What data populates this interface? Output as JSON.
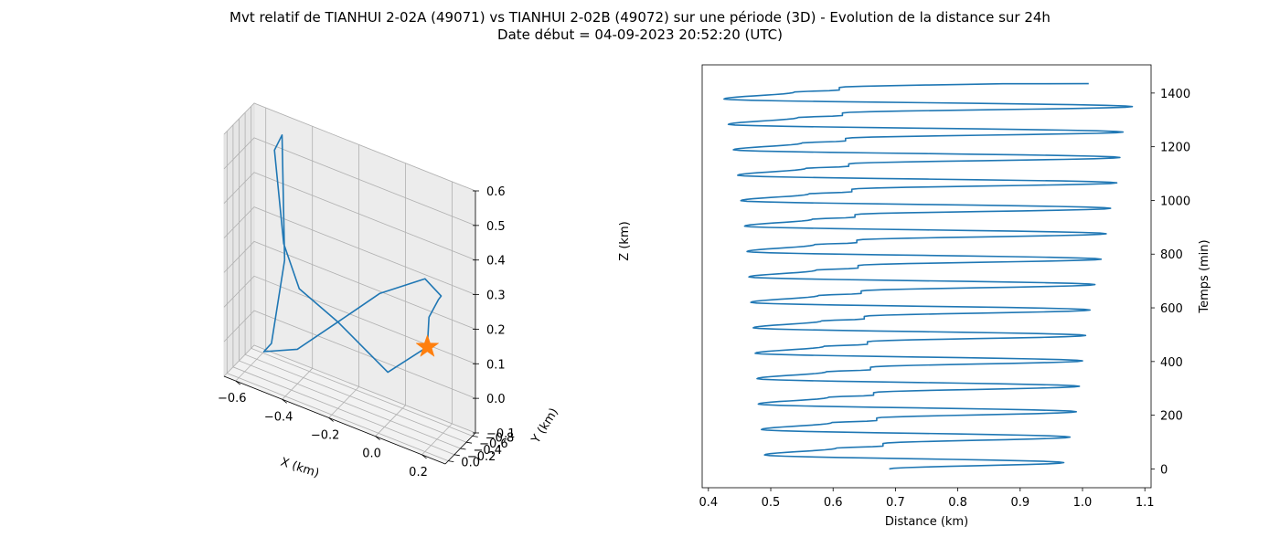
{
  "figure": {
    "title_line1": "Mvt relatif de TIANHUI 2-02A (49071) vs TIANHUI 2-02B (49072) sur une période (3D) - Evolution de la distance sur 24h",
    "title_line2": "Date début = 04-09-2023 20:52:20 (UTC)"
  },
  "chart_data": [
    {
      "type": "line",
      "projection": "3d",
      "xlabel": "X (km)",
      "ylabel": "Y (km)",
      "zlabel": "Z (km)",
      "xlim": [
        -0.65,
        0.3
      ],
      "ylim": [
        -0.9,
        0.1
      ],
      "zlim": [
        -0.1,
        0.6
      ],
      "x_ticks": [
        -0.6,
        -0.4,
        -0.2,
        0.0,
        0.2
      ],
      "x_tick_labels": [
        "−0.6",
        "−0.4",
        "−0.2",
        "0.0",
        "0.2"
      ],
      "y_ticks": [
        0.0,
        -0.2,
        -0.4,
        -0.6,
        -0.8
      ],
      "y_tick_labels": [
        "0.0",
        "−0.2",
        "−0.4",
        "−0.6",
        "−0.8"
      ],
      "z_ticks": [
        -0.1,
        0.0,
        0.1,
        0.2,
        0.3,
        0.4,
        0.5,
        0.6
      ],
      "z_tick_labels": [
        "−0.1",
        "0.0",
        "0.1",
        "0.2",
        "0.3",
        "0.4",
        "0.5",
        "0.6"
      ],
      "grid": true,
      "line_color": "#1f77b4",
      "marker_color": "#ff7f0e",
      "marker_shape": "star",
      "path": [
        {
          "x": 0.1,
          "y": -0.85,
          "z": 0.1
        },
        {
          "x": -0.05,
          "y": -0.7,
          "z": 0.0
        },
        {
          "x": -0.25,
          "y": -0.6,
          "z": 0.1
        },
        {
          "x": -0.42,
          "y": -0.62,
          "z": 0.15
        },
        {
          "x": -0.5,
          "y": -0.72,
          "z": 0.25
        },
        {
          "x": -0.55,
          "y": -0.8,
          "z": 0.5
        },
        {
          "x": -0.52,
          "y": -0.82,
          "z": 0.55
        },
        {
          "x": -0.5,
          "y": -0.75,
          "z": 0.2
        },
        {
          "x": -0.55,
          "y": -0.7,
          "z": -0.05
        },
        {
          "x": -0.58,
          "y": -0.68,
          "z": -0.08
        },
        {
          "x": -0.4,
          "y": -0.4,
          "z": 0.0
        },
        {
          "x": -0.2,
          "y": -0.2,
          "z": 0.15
        },
        {
          "x": 0.0,
          "y": -0.05,
          "z": 0.3
        },
        {
          "x": 0.2,
          "y": 0.0,
          "z": 0.4
        },
        {
          "x": 0.25,
          "y": -0.15,
          "z": 0.35
        },
        {
          "x": 0.2,
          "y": -0.45,
          "z": 0.3
        },
        {
          "x": 0.12,
          "y": -0.75,
          "z": 0.2
        },
        {
          "x": 0.1,
          "y": -0.85,
          "z": 0.1
        }
      ],
      "marker_position": {
        "x": 0.1,
        "y": -0.85,
        "z": 0.1
      }
    },
    {
      "type": "line",
      "xlabel": "Distance (km)",
      "ylabel": "Temps (min)",
      "y_axis_side": "right",
      "xlim": [
        0.39,
        1.11
      ],
      "ylim": [
        -70,
        1505
      ],
      "x_ticks": [
        0.4,
        0.5,
        0.6,
        0.7,
        0.8,
        0.9,
        1.0,
        1.1
      ],
      "x_tick_labels": [
        "0.4",
        "0.5",
        "0.6",
        "0.7",
        "0.8",
        "0.9",
        "1.0",
        "1.1"
      ],
      "y_ticks": [
        0,
        200,
        400,
        600,
        800,
        1000,
        1200,
        1400
      ],
      "y_tick_labels": [
        "0",
        "200",
        "400",
        "600",
        "800",
        "1000",
        "1200",
        "1400"
      ],
      "grid": false,
      "line_color": "#1f77b4",
      "orbital_period_min": 94.7,
      "orbits": [
        {
          "t_start": 0,
          "d_start": 0.69,
          "d_max": 0.97,
          "d_min": 0.49,
          "d_mid": 0.68
        },
        {
          "t_start": 94.7,
          "d_start": 0.68,
          "d_max": 0.98,
          "d_min": 0.485,
          "d_mid": 0.67
        },
        {
          "t_start": 189.4,
          "d_start": 0.67,
          "d_max": 0.99,
          "d_min": 0.48,
          "d_mid": 0.665
        },
        {
          "t_start": 284.1,
          "d_start": 0.665,
          "d_max": 0.995,
          "d_min": 0.478,
          "d_mid": 0.66
        },
        {
          "t_start": 378.8,
          "d_start": 0.66,
          "d_max": 1.0,
          "d_min": 0.475,
          "d_mid": 0.655
        },
        {
          "t_start": 473.5,
          "d_start": 0.655,
          "d_max": 1.005,
          "d_min": 0.472,
          "d_mid": 0.65
        },
        {
          "t_start": 568.2,
          "d_start": 0.65,
          "d_max": 1.012,
          "d_min": 0.468,
          "d_mid": 0.645
        },
        {
          "t_start": 662.9,
          "d_start": 0.645,
          "d_max": 1.02,
          "d_min": 0.465,
          "d_mid": 0.64
        },
        {
          "t_start": 757.6,
          "d_start": 0.64,
          "d_max": 1.03,
          "d_min": 0.462,
          "d_mid": 0.638
        },
        {
          "t_start": 852.3,
          "d_start": 0.638,
          "d_max": 1.038,
          "d_min": 0.458,
          "d_mid": 0.635
        },
        {
          "t_start": 947.0,
          "d_start": 0.635,
          "d_max": 1.045,
          "d_min": 0.452,
          "d_mid": 0.63
        },
        {
          "t_start": 1041.7,
          "d_start": 0.63,
          "d_max": 1.055,
          "d_min": 0.447,
          "d_mid": 0.625
        },
        {
          "t_start": 1136.4,
          "d_start": 0.625,
          "d_max": 1.06,
          "d_min": 0.44,
          "d_mid": 0.62
        },
        {
          "t_start": 1231.1,
          "d_start": 0.62,
          "d_max": 1.065,
          "d_min": 0.432,
          "d_mid": 0.615
        },
        {
          "t_start": 1325.8,
          "d_start": 0.615,
          "d_max": 1.08,
          "d_min": 0.425,
          "d_mid": 0.61
        },
        {
          "t_start": 1420.5,
          "d_start": 0.61,
          "d_max": 1.01,
          "d_min": 0.42,
          "d_mid": 0.61
        }
      ],
      "end_point": {
        "t": 1435,
        "d": 1.01
      }
    }
  ]
}
